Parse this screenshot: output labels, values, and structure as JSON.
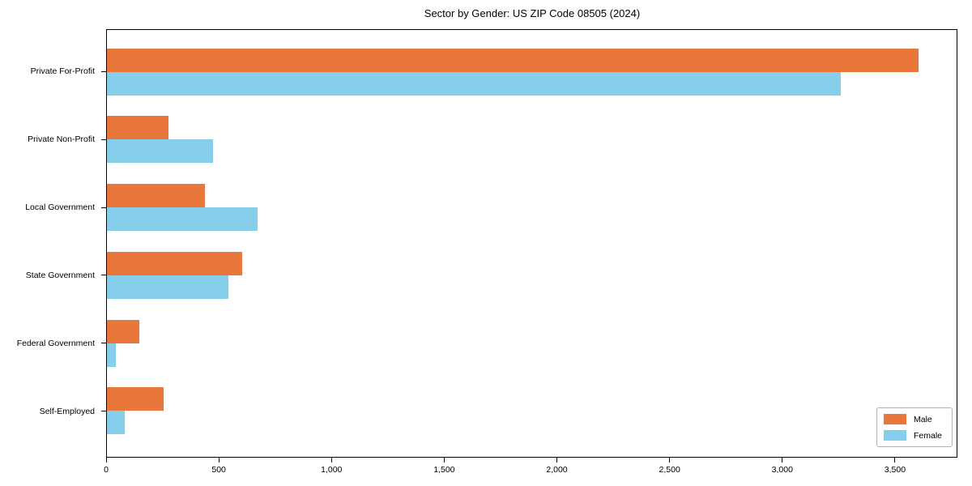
{
  "chart_data": {
    "type": "bar",
    "orientation": "horizontal",
    "title": "Sector by Gender: US ZIP Code 08505 (2024)",
    "categories": [
      "Private For-Profit",
      "Private Non-Profit",
      "Local Government",
      "State Government",
      "Federal Government",
      "Self-Employed"
    ],
    "series": [
      {
        "name": "Male",
        "color": "#e9773c",
        "values": [
          3608,
          273,
          435,
          600,
          144,
          252
        ]
      },
      {
        "name": "Female",
        "color": "#87ceeb",
        "values": [
          3262,
          471,
          668,
          539,
          40,
          79
        ]
      }
    ],
    "xlim": [
      0,
      3777
    ],
    "xticks": [
      0,
      500,
      1000,
      1500,
      2000,
      2500,
      3000,
      3500
    ],
    "xtick_labels": [
      "0",
      "500",
      "1,000",
      "1,500",
      "2,000",
      "2,500",
      "3,000",
      "3,500"
    ],
    "ylabel": "",
    "xlabel": "",
    "grid": false,
    "legend_position": "lower right",
    "axis_color": "#000000",
    "background_color": "#ffffff"
  }
}
